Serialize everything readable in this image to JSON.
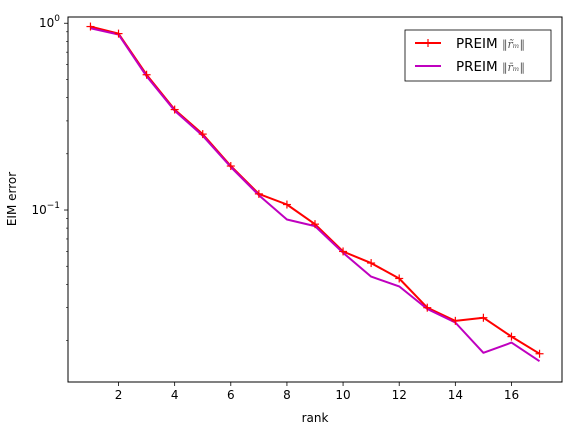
{
  "chart_data": {
    "type": "line",
    "xlabel": "rank",
    "ylabel": "EIM error",
    "xscale": "linear",
    "yscale": "log",
    "xlim": [
      0.2,
      17.8
    ],
    "ylim": [
      0.012,
      1.08
    ],
    "x_ticks": [
      2,
      4,
      6,
      8,
      10,
      12,
      14,
      16
    ],
    "x_tick_labels": [
      "2",
      "4",
      "6",
      "8",
      "10",
      "12",
      "14",
      "16"
    ],
    "y_major_ticks": [
      0.1,
      1
    ],
    "y_tick_labels": [
      {
        "base": "10",
        "exp": "−1"
      },
      {
        "base": "10",
        "exp": "0"
      }
    ],
    "y_minor_ticks": [
      0.02,
      0.03,
      0.04,
      0.05,
      0.06,
      0.07,
      0.08,
      0.09,
      0.2,
      0.3,
      0.4,
      0.5,
      0.6,
      0.7,
      0.8,
      0.9
    ],
    "grid": false,
    "legend_position": "top-right",
    "x": [
      1,
      2,
      3,
      4,
      5,
      6,
      7,
      8,
      9,
      10,
      11,
      12,
      13,
      14,
      15,
      16,
      17
    ],
    "series": [
      {
        "name": "PREIM ‖r̃m‖",
        "legend_base": "PREIM ",
        "legend_math": "‖r̃ₘ‖",
        "color": "#ff0000",
        "marker": "+",
        "values": [
          0.96,
          0.88,
          0.53,
          0.345,
          0.255,
          0.172,
          0.122,
          0.107,
          0.084,
          0.06,
          0.052,
          0.043,
          0.03,
          0.0255,
          0.0265,
          0.021,
          0.017
        ]
      },
      {
        "name": "PREIM ‖r̄m‖",
        "legend_base": "PREIM ",
        "legend_math": "‖r̄ₘ‖",
        "color": "#bf00bf",
        "marker": "none",
        "values": [
          0.94,
          0.87,
          0.52,
          0.34,
          0.25,
          0.17,
          0.12,
          0.089,
          0.082,
          0.059,
          0.044,
          0.039,
          0.0295,
          0.025,
          0.0172,
          0.0195,
          0.0155
        ]
      }
    ]
  }
}
